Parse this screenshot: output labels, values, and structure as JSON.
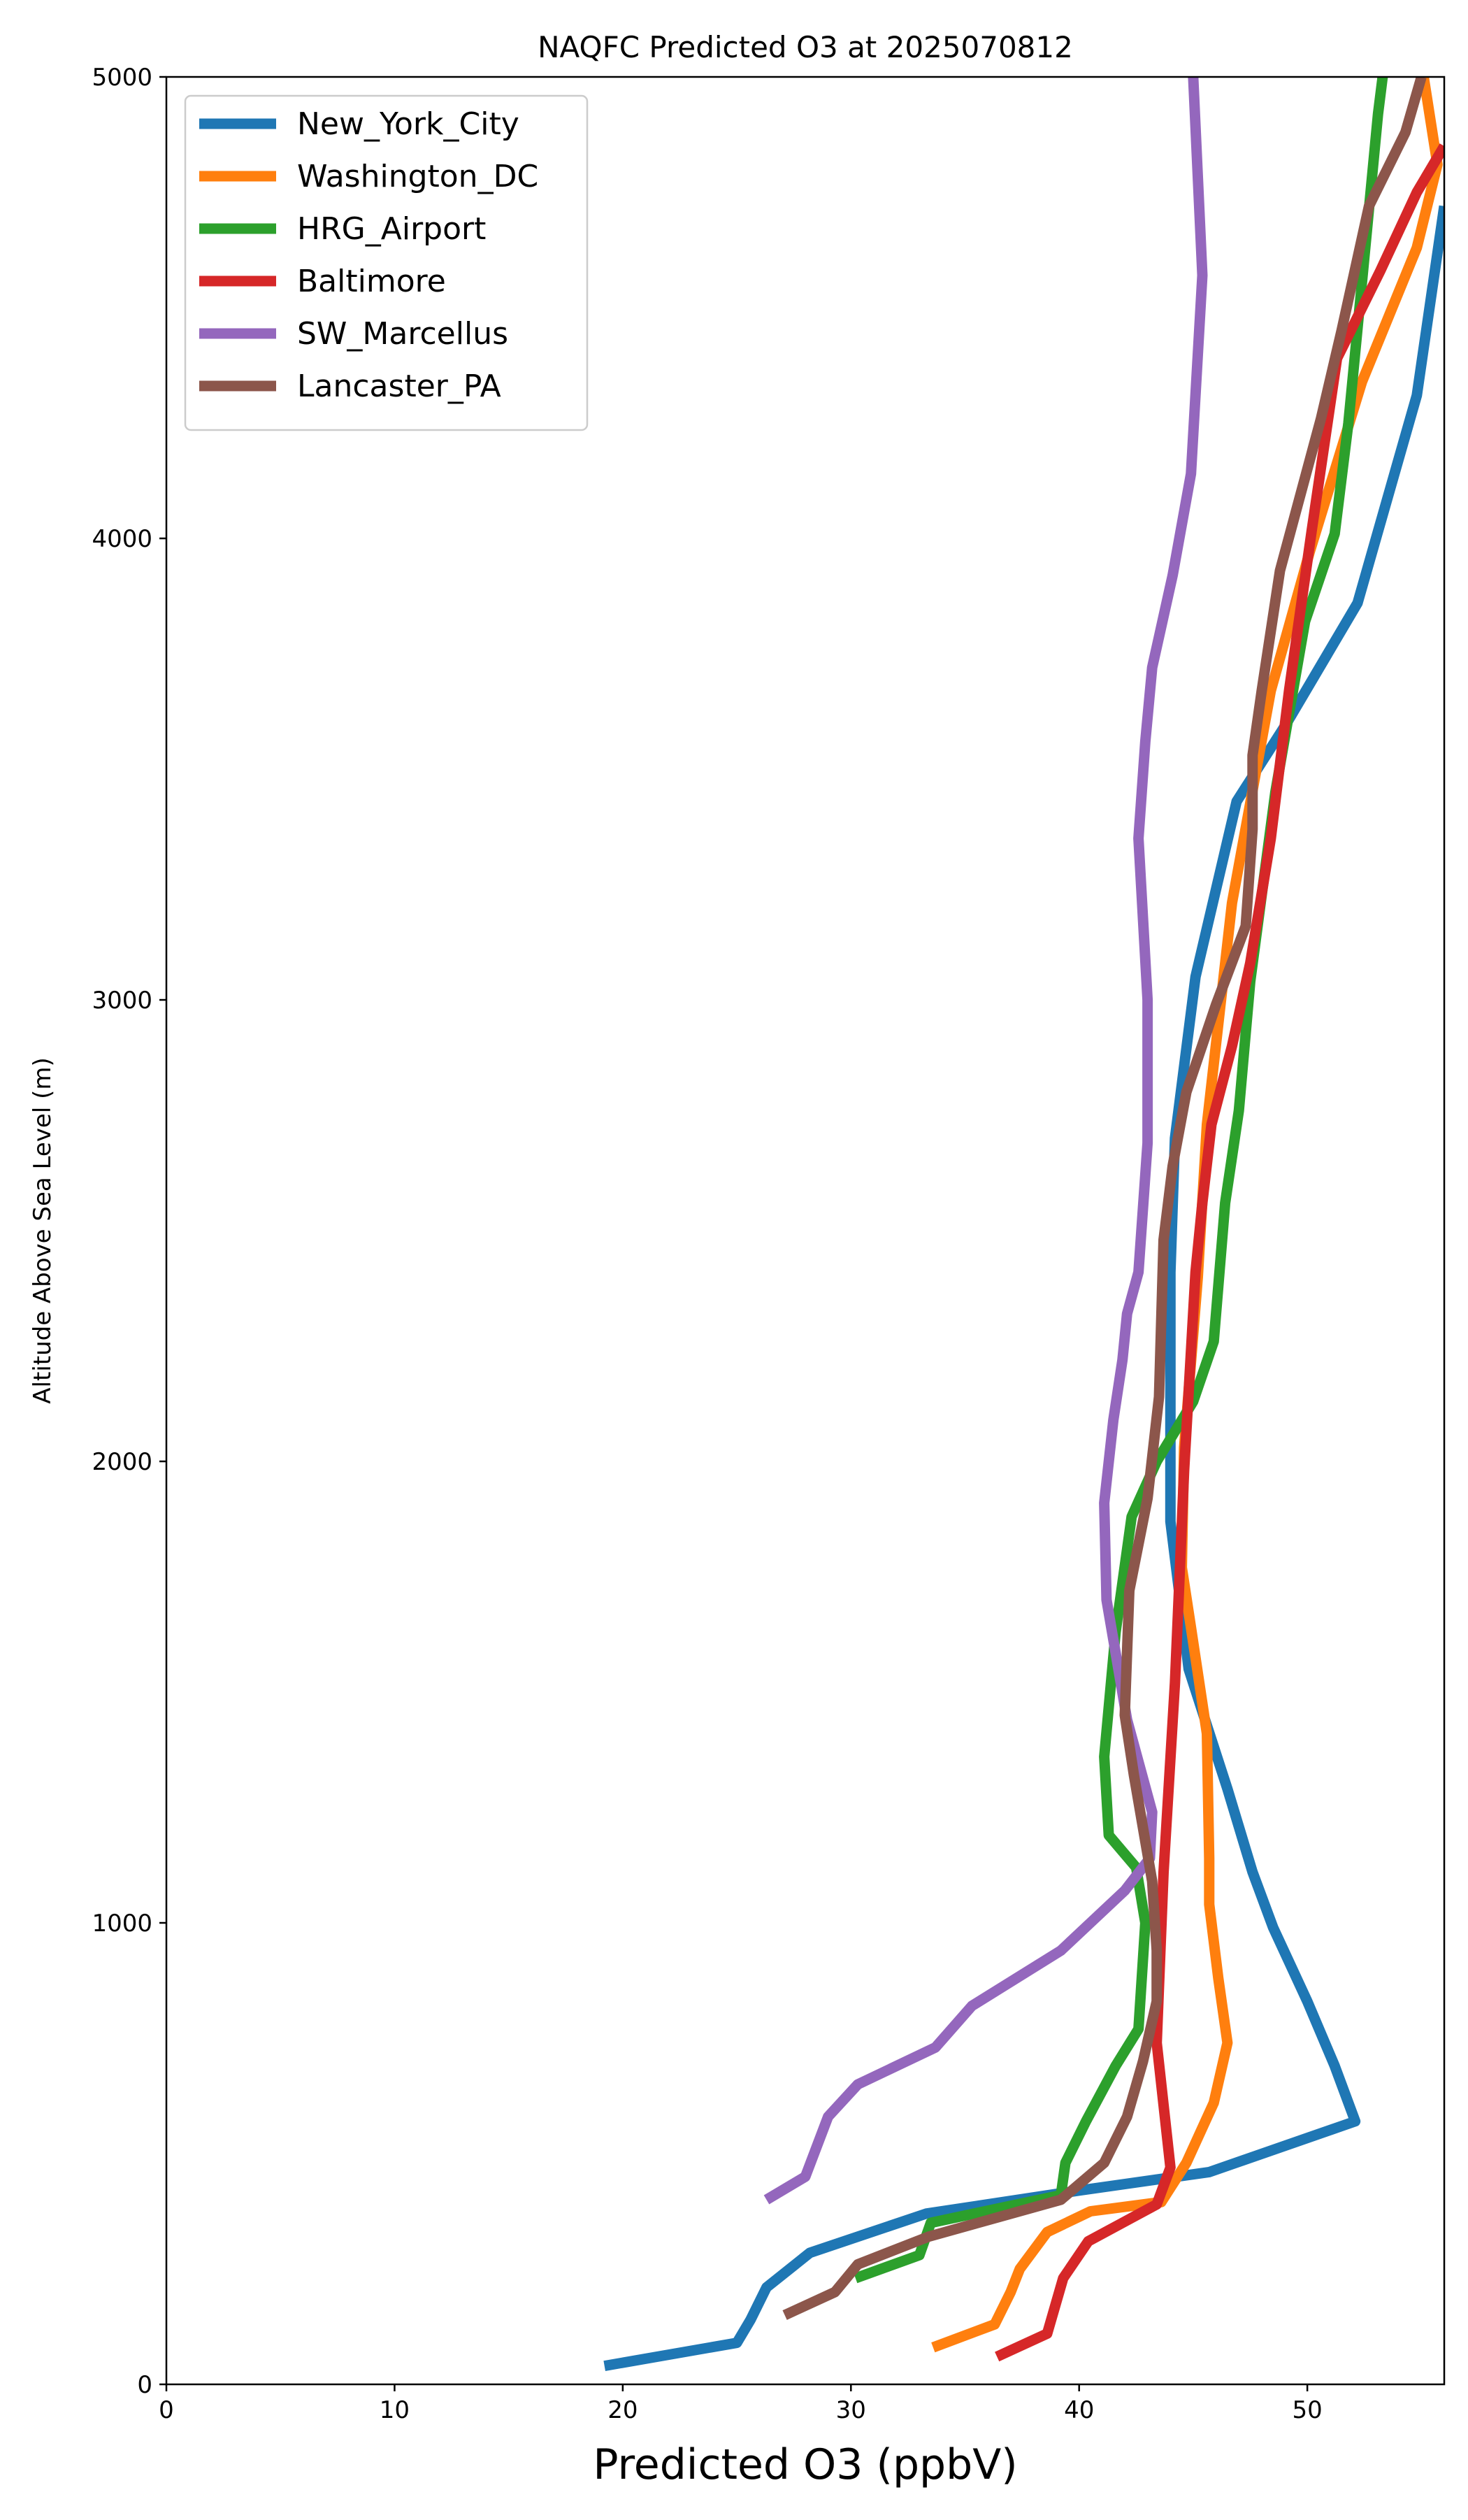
{
  "chart_data": {
    "type": "line",
    "title": "NAQFC Predicted O3 at 2025070812",
    "xlabel": "Predicted O3 (ppbV)",
    "ylabel": "Altitude Above Sea Level (m)",
    "xlim": [
      0,
      56
    ],
    "ylim": [
      0,
      5000
    ],
    "xticks": [
      0,
      10,
      20,
      30,
      40,
      50
    ],
    "yticks": [
      0,
      1000,
      2000,
      3000,
      4000,
      5000
    ],
    "grid": false,
    "legend_position": "top-left",
    "series": [
      {
        "name": "New_York_City",
        "color": "#1f77b4",
        "points": [
          [
            19.2,
            40
          ],
          [
            25,
            90
          ],
          [
            25.6,
            140
          ],
          [
            26.3,
            210
          ],
          [
            28.2,
            285
          ],
          [
            33.3,
            370
          ],
          [
            40,
            420
          ],
          [
            45.7,
            460
          ],
          [
            52.1,
            570
          ],
          [
            51.2,
            690
          ],
          [
            50,
            830
          ],
          [
            48.5,
            990
          ],
          [
            47.6,
            1110
          ],
          [
            46.5,
            1290
          ],
          [
            44.8,
            1550
          ],
          [
            44,
            1870
          ],
          [
            44,
            2410
          ],
          [
            44.2,
            2700
          ],
          [
            45.1,
            3050
          ],
          [
            46.9,
            3430
          ],
          [
            49.1,
            3600
          ],
          [
            52.2,
            3860
          ],
          [
            54.8,
            4310
          ],
          [
            56,
            4720
          ]
        ]
      },
      {
        "name": "Washington_DC",
        "color": "#ff7f0e",
        "points": [
          [
            33.6,
            80
          ],
          [
            36.3,
            130
          ],
          [
            37,
            200
          ],
          [
            37.4,
            250
          ],
          [
            38.6,
            330
          ],
          [
            40.5,
            375
          ],
          [
            43.6,
            395
          ],
          [
            44.7,
            480
          ],
          [
            45.9,
            610
          ],
          [
            46.5,
            740
          ],
          [
            46.1,
            880
          ],
          [
            45.7,
            1040
          ],
          [
            45.7,
            1140
          ],
          [
            45.6,
            1410
          ],
          [
            44.9,
            1640
          ],
          [
            44.5,
            1770
          ],
          [
            44.6,
            2030
          ],
          [
            45.2,
            2400
          ],
          [
            45.6,
            2730
          ],
          [
            46.7,
            3210
          ],
          [
            48.4,
            3670
          ],
          [
            50.1,
            3970
          ],
          [
            52.4,
            4340
          ],
          [
            54.8,
            4630
          ],
          [
            55.7,
            4810
          ],
          [
            55.1,
            5000
          ]
        ]
      },
      {
        "name": "HRG_Airport",
        "color": "#2ca02c",
        "points": [
          [
            30.2,
            230
          ],
          [
            33,
            280
          ],
          [
            33.5,
            350
          ],
          [
            39.2,
            410
          ],
          [
            39.4,
            480
          ],
          [
            40.3,
            570
          ],
          [
            41.6,
            690
          ],
          [
            42.6,
            770
          ],
          [
            42.9,
            1000
          ],
          [
            42.5,
            1120
          ],
          [
            41.3,
            1190
          ],
          [
            41.1,
            1360
          ],
          [
            41.6,
            1630
          ],
          [
            42.3,
            1880
          ],
          [
            43.4,
            2000
          ],
          [
            45,
            2130
          ],
          [
            45.9,
            2260
          ],
          [
            46.4,
            2560
          ],
          [
            47,
            2760
          ],
          [
            47.5,
            3040
          ],
          [
            48.6,
            3450
          ],
          [
            49.9,
            3820
          ],
          [
            51.2,
            4010
          ],
          [
            51.8,
            4250
          ],
          [
            52.5,
            4610
          ],
          [
            53.1,
            4920
          ],
          [
            53.3,
            5000
          ]
        ]
      },
      {
        "name": "Baltimore",
        "color": "#d62728",
        "points": [
          [
            36.4,
            60
          ],
          [
            38.6,
            110
          ],
          [
            39.3,
            230
          ],
          [
            40.4,
            310
          ],
          [
            43.4,
            390
          ],
          [
            44,
            470
          ],
          [
            43.4,
            740
          ],
          [
            43.7,
            1110
          ],
          [
            44.2,
            1520
          ],
          [
            44.6,
            1980
          ],
          [
            45.1,
            2410
          ],
          [
            45.4,
            2560
          ],
          [
            45.8,
            2730
          ],
          [
            46.7,
            2900
          ],
          [
            47.5,
            3080
          ],
          [
            48.4,
            3350
          ],
          [
            49.2,
            3670
          ],
          [
            50.2,
            4020
          ],
          [
            51.3,
            4390
          ],
          [
            53.2,
            4580
          ],
          [
            54.8,
            4750
          ],
          [
            56,
            4850
          ]
        ]
      },
      {
        "name": "SW_Marcellus",
        "color": "#9467bd",
        "points": [
          [
            26.3,
            400
          ],
          [
            28,
            450
          ],
          [
            29,
            580
          ],
          [
            30.3,
            650
          ],
          [
            33.7,
            730
          ],
          [
            35.3,
            820
          ],
          [
            39.2,
            940
          ],
          [
            42,
            1070
          ],
          [
            43.1,
            1140
          ],
          [
            43.2,
            1240
          ],
          [
            42.1,
            1440
          ],
          [
            41.2,
            1700
          ],
          [
            41.1,
            1910
          ],
          [
            41.5,
            2090
          ],
          [
            41.9,
            2220
          ],
          [
            42.1,
            2320
          ],
          [
            42.6,
            2410
          ],
          [
            43,
            2690
          ],
          [
            43,
            3000
          ],
          [
            42.6,
            3350
          ],
          [
            42.9,
            3560
          ],
          [
            43.2,
            3720
          ],
          [
            44.1,
            3920
          ],
          [
            44.9,
            4140
          ],
          [
            45.4,
            4570
          ],
          [
            45,
            5000
          ]
        ]
      },
      {
        "name": "Lancaster_PA",
        "color": "#8c564b",
        "points": [
          [
            27.1,
            150
          ],
          [
            29.3,
            200
          ],
          [
            30.3,
            260
          ],
          [
            33.4,
            320
          ],
          [
            39.2,
            400
          ],
          [
            41.1,
            480
          ],
          [
            42.1,
            580
          ],
          [
            42.8,
            700
          ],
          [
            43.4,
            830
          ],
          [
            43.4,
            940
          ],
          [
            43.2,
            1090
          ],
          [
            42.4,
            1320
          ],
          [
            42,
            1450
          ],
          [
            42.2,
            1720
          ],
          [
            43,
            1920
          ],
          [
            43.5,
            2140
          ],
          [
            43.7,
            2480
          ],
          [
            44.1,
            2640
          ],
          [
            44.7,
            2800
          ],
          [
            46,
            2990
          ],
          [
            47.3,
            3160
          ],
          [
            47.6,
            3370
          ],
          [
            47.6,
            3530
          ],
          [
            48,
            3670
          ],
          [
            48.8,
            3930
          ],
          [
            50.6,
            4260
          ],
          [
            51.5,
            4450
          ],
          [
            52.7,
            4720
          ],
          [
            54.3,
            4880
          ],
          [
            55,
            5000
          ]
        ]
      }
    ]
  }
}
